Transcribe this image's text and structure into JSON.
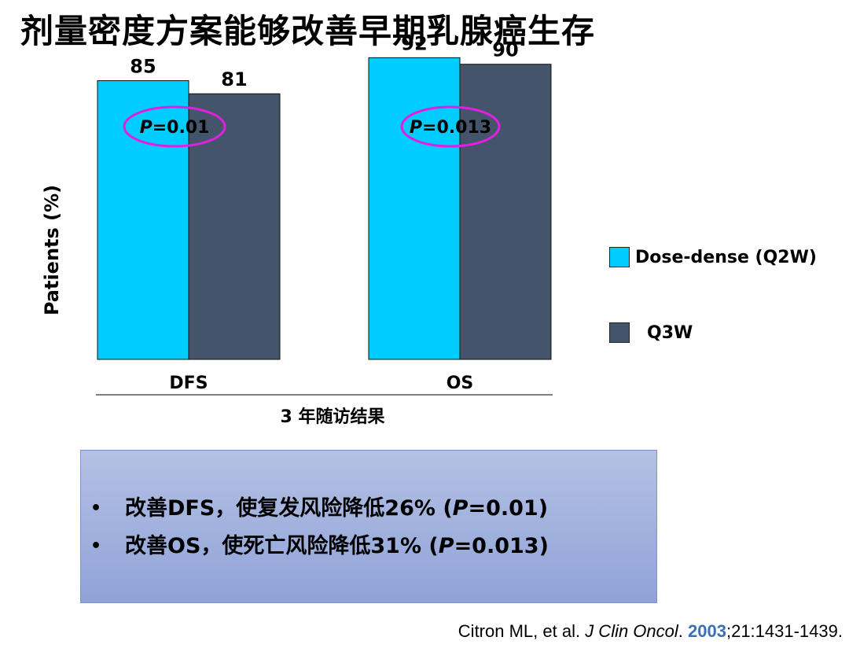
{
  "title": "剂量密度方案能够改善早期乳腺癌生存",
  "chart_data": {
    "type": "bar",
    "categories": [
      "DFS",
      "OS"
    ],
    "series": [
      {
        "name": "Dose-dense (Q2W)",
        "values": [
          85,
          92
        ],
        "color": "#00ccff"
      },
      {
        "name": "Q3W",
        "values": [
          81,
          90
        ],
        "color": "#44546a"
      }
    ],
    "ylabel": "Patients (%)",
    "xlabel": "3 年随访结果",
    "ylim": [
      0,
      100
    ],
    "grid": false,
    "legend": "right",
    "annotations": [
      {
        "category": "DFS",
        "p_label": "P",
        "p_value": "=0.01"
      },
      {
        "category": "OS",
        "p_label": "P",
        "p_value": "=0.013"
      }
    ],
    "annotation_color": "#e020e0"
  },
  "summary": {
    "items": [
      {
        "bullet": "•",
        "pre": "改善DFS，使复发风险降低26% (",
        "p": "P",
        "post": "=0.01)"
      },
      {
        "bullet": "•",
        "pre": "改善OS，使死亡风险降低31% (",
        "p": "P",
        "post": "=0.013)"
      }
    ]
  },
  "citation": {
    "authors": "Citron ML, et al. ",
    "journal": "J Clin Oncol",
    "dot": ". ",
    "year": "2003",
    "rest": ";21:1431-1439."
  }
}
